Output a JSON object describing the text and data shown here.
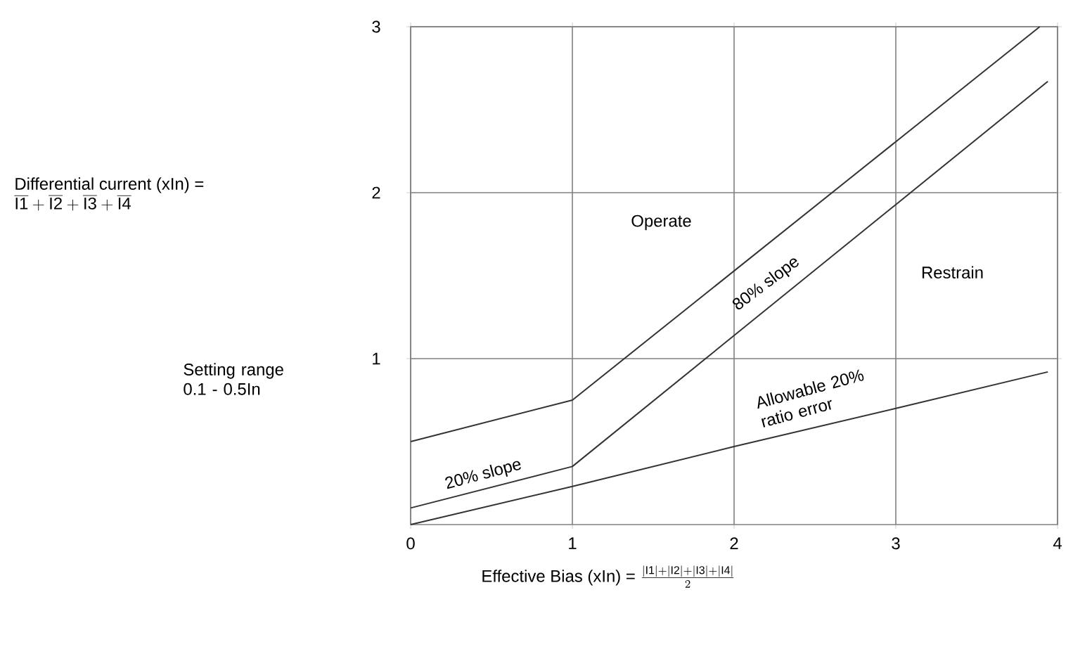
{
  "chart_data": {
    "type": "line",
    "xlabel": "Effective Bias (xIn) =",
    "xlim": [
      0,
      4
    ],
    "ylim": [
      0,
      3
    ],
    "xticks": [
      0,
      1,
      2,
      3,
      4
    ],
    "yticks": [
      1,
      2,
      3
    ],
    "grid": true,
    "line_style": "solid",
    "marker": "none",
    "series": [
      {
        "color": "#333333",
        "x": [
          0,
          1,
          3.89
        ],
        "values": [
          0.5,
          0.75,
          3
        ]
      },
      {
        "color": "#333333",
        "x": [
          0,
          1,
          3.94
        ],
        "values": [
          0.1,
          0.35,
          2.67
        ]
      },
      {
        "color": "#333333",
        "x": [
          0,
          1,
          2,
          3,
          3.94
        ],
        "values": [
          0,
          0.23,
          0.47,
          0.7,
          0.92
        ]
      }
    ],
    "annotations": [
      "Operate",
      "Restrain",
      "80% slope",
      "20% slope",
      "Allowable 20% ratio error",
      "Setting range 0.1 - 0.5In",
      "\\overline{\\mathrm{I1}} + \\overline{\\mathrm{I2}} + \\overline{\\mathrm{I3}} + \\overline{\\mathrm{I4}}",
      "\\frac{|\\mathrm{I1}| + |\\mathrm{I2}| + |\\mathrm{I3}| + |\\mathrm{I4}|}{2}",
      "Differential current (xIn) ="
    ]
  }
}
